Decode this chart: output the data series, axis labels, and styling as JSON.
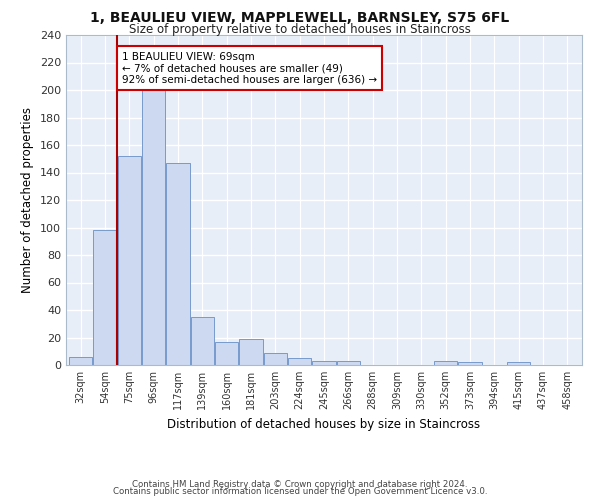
{
  "title": "1, BEAULIEU VIEW, MAPPLEWELL, BARNSLEY, S75 6FL",
  "subtitle": "Size of property relative to detached houses in Staincross",
  "xlabel": "Distribution of detached houses by size in Staincross",
  "ylabel": "Number of detached properties",
  "bar_labels": [
    "32sqm",
    "54sqm",
    "75sqm",
    "96sqm",
    "117sqm",
    "139sqm",
    "160sqm",
    "181sqm",
    "203sqm",
    "224sqm",
    "245sqm",
    "266sqm",
    "288sqm",
    "309sqm",
    "330sqm",
    "352sqm",
    "373sqm",
    "394sqm",
    "415sqm",
    "437sqm",
    "458sqm"
  ],
  "bar_values": [
    6,
    98,
    152,
    200,
    147,
    35,
    17,
    19,
    9,
    5,
    3,
    3,
    0,
    0,
    0,
    3,
    2,
    0,
    2,
    0,
    0
  ],
  "bar_color": "#ccd9f0",
  "bar_edge_color": "#7799cc",
  "background_color": "#e8eef8",
  "grid_color": "#ffffff",
  "red_line_x": 1.5,
  "annotation_text": "1 BEAULIEU VIEW: 69sqm\n← 7% of detached houses are smaller (49)\n92% of semi-detached houses are larger (636) →",
  "annotation_box_color": "#ffffff",
  "annotation_box_edge": "#cc0000",
  "red_line_color": "#aa0000",
  "ylim": [
    0,
    240
  ],
  "yticks": [
    0,
    20,
    40,
    60,
    80,
    100,
    120,
    140,
    160,
    180,
    200,
    220,
    240
  ],
  "footer_line1": "Contains HM Land Registry data © Crown copyright and database right 2024.",
  "footer_line2": "Contains public sector information licensed under the Open Government Licence v3.0."
}
